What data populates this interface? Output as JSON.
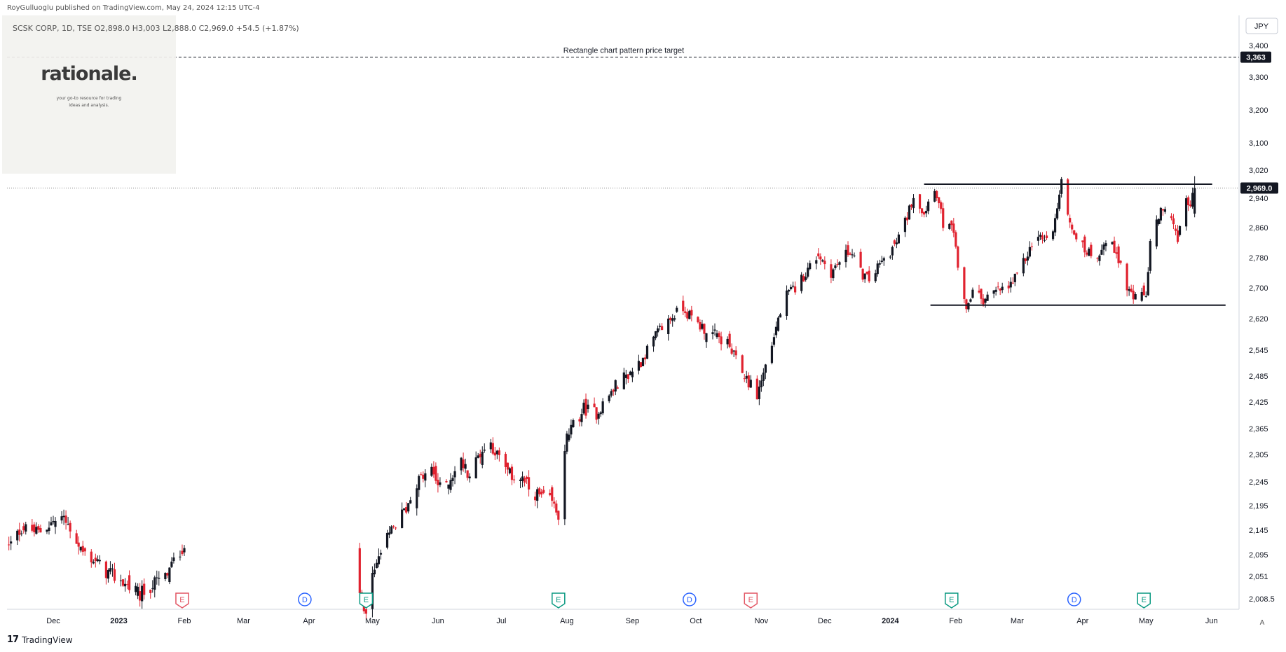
{
  "header": {
    "published_line": "RoyGulluoglu published on TradingView.com, May 24, 2024 12:15 UTC-4",
    "ohlc_line": "SCSK CORP, 1D, TSE  O2,898.0  H3,003  L2,888.0  C2,969.0  +54.5 (+1.87%)"
  },
  "watermark": {
    "title": "rationale.",
    "subtitle_line1": "your go-to resource for trading",
    "subtitle_line2": "ideas and analysis."
  },
  "footer": {
    "brand": "TradingView"
  },
  "colors": {
    "up": "#131722",
    "down": "#e0222f",
    "accent_blue": "#2962ff",
    "earnings_red": "#e25563",
    "earnings_green": "#089981"
  },
  "chart_data": {
    "type": "candlestick",
    "currency": "JPY",
    "ylim": [
      2000,
      3430
    ],
    "y_axis_ticks": [
      {
        "value": 3400,
        "label": "3,400"
      },
      {
        "value": 3300,
        "label": "3,300"
      },
      {
        "value": 3200,
        "label": "3,200"
      },
      {
        "value": 3100,
        "label": "3,100"
      },
      {
        "value": 3020,
        "label": "3,020"
      },
      {
        "value": 2940,
        "label": "2,940"
      },
      {
        "value": 2860,
        "label": "2,860"
      },
      {
        "value": 2780,
        "label": "2,780"
      },
      {
        "value": 2700,
        "label": "2,700"
      },
      {
        "value": 2620,
        "label": "2,620"
      },
      {
        "value": 2545,
        "label": "2,545"
      },
      {
        "value": 2485,
        "label": "2,485"
      },
      {
        "value": 2425,
        "label": "2,425"
      },
      {
        "value": 2365,
        "label": "2,365"
      },
      {
        "value": 2305,
        "label": "2,305"
      },
      {
        "value": 2245,
        "label": "2,245"
      },
      {
        "value": 2195,
        "label": "2,195"
      },
      {
        "value": 2145,
        "label": "2,145"
      },
      {
        "value": 2095,
        "label": "2,095"
      },
      {
        "value": 2051,
        "label": "2,051"
      },
      {
        "value": 2008.5,
        "label": "2,008.5"
      }
    ],
    "x_axis_ticks": [
      {
        "date": "2022-12-01",
        "label": "Dec",
        "bold": false
      },
      {
        "date": "2023-01-01",
        "label": "2023",
        "bold": true
      },
      {
        "date": "2023-02-01",
        "label": "Feb",
        "bold": false
      },
      {
        "date": "2023-03-01",
        "label": "Mar",
        "bold": false
      },
      {
        "date": "2023-04-01",
        "label": "Apr",
        "bold": false
      },
      {
        "date": "2023-05-01",
        "label": "May",
        "bold": false
      },
      {
        "date": "2023-06-01",
        "label": "Jun",
        "bold": false
      },
      {
        "date": "2023-07-01",
        "label": "Jul",
        "bold": false
      },
      {
        "date": "2023-08-01",
        "label": "Aug",
        "bold": false
      },
      {
        "date": "2023-09-01",
        "label": "Sep",
        "bold": false
      },
      {
        "date": "2023-10-01",
        "label": "Oct",
        "bold": false
      },
      {
        "date": "2023-11-01",
        "label": "Nov",
        "bold": false
      },
      {
        "date": "2023-12-01",
        "label": "Dec",
        "bold": false
      },
      {
        "date": "2024-01-01",
        "label": "2024",
        "bold": true
      },
      {
        "date": "2024-02-01",
        "label": "Feb",
        "bold": false
      },
      {
        "date": "2024-03-01",
        "label": "Mar",
        "bold": false
      },
      {
        "date": "2024-04-01",
        "label": "Apr",
        "bold": false
      },
      {
        "date": "2024-05-01",
        "label": "May",
        "bold": false
      },
      {
        "date": "2024-06-01",
        "label": "Jun",
        "bold": false
      }
    ],
    "price_path": [
      {
        "date": "2022-11-10",
        "close": 2110
      },
      {
        "date": "2022-11-16",
        "close": 2150
      },
      {
        "date": "2022-11-24",
        "close": 2140
      },
      {
        "date": "2022-11-30",
        "close": 2160
      },
      {
        "date": "2022-12-05",
        "close": 2170
      },
      {
        "date": "2022-12-09",
        "close": 2150
      },
      {
        "date": "2022-12-15",
        "close": 2100
      },
      {
        "date": "2022-12-20",
        "close": 2085
      },
      {
        "date": "2022-12-26",
        "close": 2060
      },
      {
        "date": "2023-01-03",
        "close": 2040
      },
      {
        "date": "2023-01-11",
        "close": 2015
      },
      {
        "date": "2023-01-17",
        "close": 2035
      },
      {
        "date": "2023-01-23",
        "close": 2050
      },
      {
        "date": "2023-01-27",
        "close": 2080
      },
      {
        "date": "2023-01-31",
        "close": 2110
      },
      {
        "date": "2023-02-02",
        "close": 2125
      },
      {
        "date": "2023-02-08",
        "close": null
      },
      {
        "date": "2023-04-25",
        "close": 2005
      },
      {
        "date": "2023-04-28",
        "close": 1995
      },
      {
        "date": "2023-05-02",
        "close": 2060
      },
      {
        "date": "2023-05-05",
        "close": 2100
      },
      {
        "date": "2023-05-11",
        "close": 2150
      },
      {
        "date": "2023-05-17",
        "close": 2190
      },
      {
        "date": "2023-05-22",
        "close": 2245
      },
      {
        "date": "2023-05-29",
        "close": 2270
      },
      {
        "date": "2023-06-02",
        "close": 2230
      },
      {
        "date": "2023-06-07",
        "close": 2255
      },
      {
        "date": "2023-06-12",
        "close": 2290
      },
      {
        "date": "2023-06-16",
        "close": 2260
      },
      {
        "date": "2023-06-21",
        "close": 2310
      },
      {
        "date": "2023-06-26",
        "close": 2330
      },
      {
        "date": "2023-06-30",
        "close": 2295
      },
      {
        "date": "2023-07-05",
        "close": 2260
      },
      {
        "date": "2023-07-11",
        "close": 2250
      },
      {
        "date": "2023-07-14",
        "close": 2230
      },
      {
        "date": "2023-07-19",
        "close": 2215
      },
      {
        "date": "2023-07-25",
        "close": 2200
      },
      {
        "date": "2023-07-28",
        "close": 2175
      },
      {
        "date": "2023-08-01",
        "close": 2345
      },
      {
        "date": "2023-08-04",
        "close": 2370
      },
      {
        "date": "2023-08-09",
        "close": 2410
      },
      {
        "date": "2023-08-15",
        "close": 2400
      },
      {
        "date": "2023-08-21",
        "close": 2440
      },
      {
        "date": "2023-08-25",
        "close": 2470
      },
      {
        "date": "2023-08-30",
        "close": 2490
      },
      {
        "date": "2023-09-05",
        "close": 2520
      },
      {
        "date": "2023-09-11",
        "close": 2570
      },
      {
        "date": "2023-09-15",
        "close": 2600
      },
      {
        "date": "2023-09-20",
        "close": 2625
      },
      {
        "date": "2023-09-25",
        "close": 2650
      },
      {
        "date": "2023-09-29",
        "close": 2620
      },
      {
        "date": "2023-10-04",
        "close": 2600
      },
      {
        "date": "2023-10-10",
        "close": 2580
      },
      {
        "date": "2023-10-16",
        "close": 2560
      },
      {
        "date": "2023-10-20",
        "close": 2520
      },
      {
        "date": "2023-10-25",
        "close": 2480
      },
      {
        "date": "2023-10-30",
        "close": 2440
      },
      {
        "date": "2023-11-01",
        "close": 2475
      },
      {
        "date": "2023-11-06",
        "close": 2560
      },
      {
        "date": "2023-11-09",
        "close": 2620
      },
      {
        "date": "2023-11-13",
        "close": 2680
      },
      {
        "date": "2023-11-17",
        "close": 2700
      },
      {
        "date": "2023-11-22",
        "close": 2740
      },
      {
        "date": "2023-11-28",
        "close": 2790
      },
      {
        "date": "2023-12-04",
        "close": 2740
      },
      {
        "date": "2023-12-08",
        "close": 2770
      },
      {
        "date": "2023-12-13",
        "close": 2800
      },
      {
        "date": "2023-12-18",
        "close": 2740
      },
      {
        "date": "2023-12-22",
        "close": 2720
      },
      {
        "date": "2023-12-27",
        "close": 2760
      },
      {
        "date": "2024-01-04",
        "close": 2820
      },
      {
        "date": "2024-01-09",
        "close": 2890
      },
      {
        "date": "2024-01-12",
        "close": 2950
      },
      {
        "date": "2024-01-17",
        "close": 2900
      },
      {
        "date": "2024-01-22",
        "close": 2975
      },
      {
        "date": "2024-01-26",
        "close": 2870
      },
      {
        "date": "2024-01-31",
        "close": 2850
      },
      {
        "date": "2024-02-02",
        "close": 2740
      },
      {
        "date": "2024-02-06",
        "close": 2650
      },
      {
        "date": "2024-02-09",
        "close": 2690
      },
      {
        "date": "2024-02-14",
        "close": 2670
      },
      {
        "date": "2024-02-20",
        "close": 2690
      },
      {
        "date": "2024-02-26",
        "close": 2700
      },
      {
        "date": "2024-03-01",
        "close": 2730
      },
      {
        "date": "2024-03-06",
        "close": 2790
      },
      {
        "date": "2024-03-11",
        "close": 2840
      },
      {
        "date": "2024-03-15",
        "close": 2820
      },
      {
        "date": "2024-03-19",
        "close": 2880
      },
      {
        "date": "2024-03-22",
        "close": 2980
      },
      {
        "date": "2024-03-27",
        "close": 2860
      },
      {
        "date": "2024-04-02",
        "close": 2800
      },
      {
        "date": "2024-04-08",
        "close": 2790
      },
      {
        "date": "2024-04-12",
        "close": 2820
      },
      {
        "date": "2024-04-17",
        "close": 2800
      },
      {
        "date": "2024-04-22",
        "close": 2700
      },
      {
        "date": "2024-04-26",
        "close": 2670
      },
      {
        "date": "2024-05-01",
        "close": 2680
      },
      {
        "date": "2024-05-03",
        "close": 2820
      },
      {
        "date": "2024-05-08",
        "close": 2900
      },
      {
        "date": "2024-05-13",
        "close": 2900
      },
      {
        "date": "2024-05-16",
        "close": 2820
      },
      {
        "date": "2024-05-20",
        "close": 2940
      },
      {
        "date": "2024-05-22",
        "close": 2915
      },
      {
        "date": "2024-05-24",
        "close": 2969
      }
    ],
    "last_price": {
      "value": 2969.0,
      "label": "2,969.0"
    },
    "annotations": {
      "target": {
        "value": 3363,
        "label": "3,363",
        "text": "Rectangle chart pattern price target"
      },
      "resistance": {
        "value": 2980,
        "from": "2024-01-17",
        "to": "2024-05-24"
      },
      "support": {
        "value": 2655,
        "from": "2024-01-20",
        "to": "2024-06-01"
      }
    },
    "events": [
      {
        "date": "2023-01-31",
        "code": "E",
        "kind": "earnings-red"
      },
      {
        "date": "2023-03-30",
        "code": "D",
        "kind": "dividend"
      },
      {
        "date": "2023-04-28",
        "code": "E",
        "kind": "earnings-green"
      },
      {
        "date": "2023-07-28",
        "code": "E",
        "kind": "earnings-green"
      },
      {
        "date": "2023-09-28",
        "code": "D",
        "kind": "dividend"
      },
      {
        "date": "2023-10-27",
        "code": "E",
        "kind": "earnings-red"
      },
      {
        "date": "2024-01-30",
        "code": "E",
        "kind": "earnings-green"
      },
      {
        "date": "2024-03-28",
        "code": "D",
        "kind": "dividend"
      },
      {
        "date": "2024-04-30",
        "code": "E",
        "kind": "earnings-green"
      }
    ],
    "auto_scale_label": "A"
  }
}
